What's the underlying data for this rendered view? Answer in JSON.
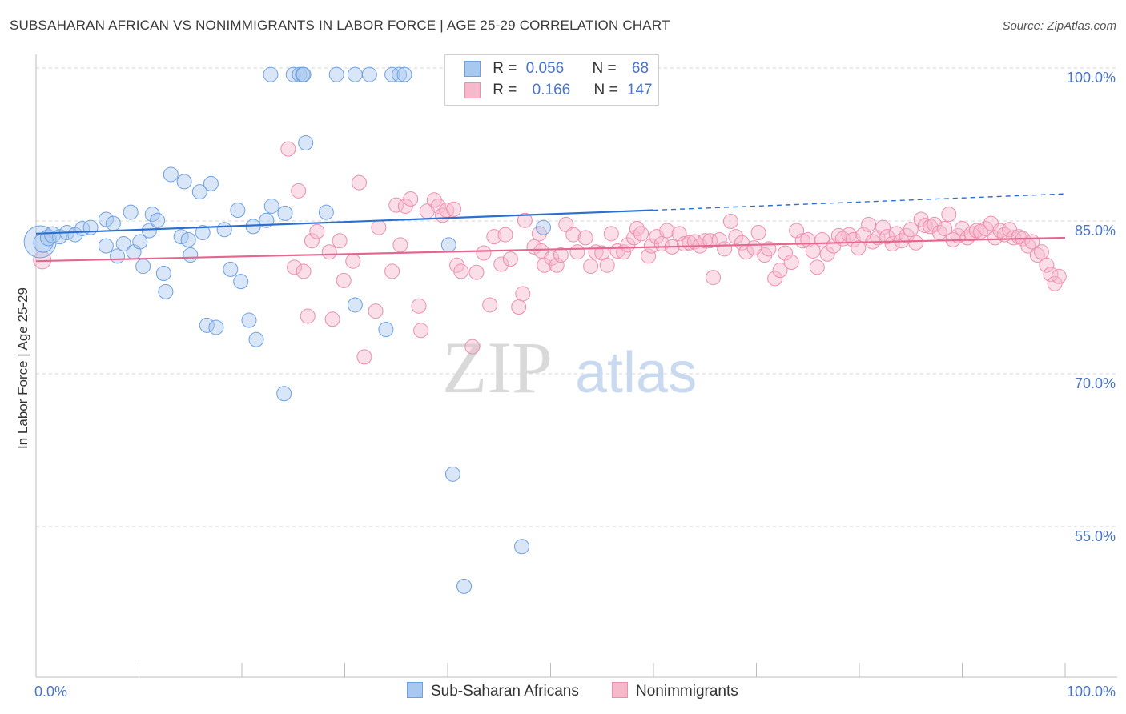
{
  "title": "SUBSAHARAN AFRICAN VS NONIMMIGRANTS IN LABOR FORCE | AGE 25-29 CORRELATION CHART",
  "source": "Source: ZipAtlas.com",
  "watermark": {
    "zip": "ZIP",
    "atlas": "atlas"
  },
  "legend": {
    "rows": [
      {
        "r_label": "R =",
        "r_value": "0.056",
        "n_label": "N =",
        "n_value": "68"
      },
      {
        "r_label": "R =",
        "r_value": "0.166",
        "n_label": "N =",
        "n_value": "147"
      }
    ]
  },
  "colors": {
    "blue_fill": "#a9c8f0",
    "blue_stroke": "#6fa0df",
    "blue_line": "#2b6fd0",
    "pink_fill": "#f6b8cb",
    "pink_stroke": "#ec8fac",
    "pink_line": "#e5678f",
    "tick_label": "#4a74c9"
  },
  "chart_data": {
    "type": "scatter",
    "title": "SUBSAHARAN AFRICAN VS NONIMMIGRANTS IN LABOR FORCE | AGE 25-29 CORRELATION CHART",
    "xlabel": "",
    "ylabel": "In Labor Force | Age 25-29",
    "xlim": [
      0,
      100
    ],
    "ylim": [
      40,
      101.5
    ],
    "x_tick_labels": [
      "0.0%",
      "100.0%"
    ],
    "y_ticks": [
      {
        "value": 100,
        "label": "100.0%"
      },
      {
        "value": 85,
        "label": "85.0%"
      },
      {
        "value": 70,
        "label": "70.0%"
      },
      {
        "value": 55,
        "label": "55.0%"
      }
    ],
    "grid": true,
    "legend_position": "bottom",
    "series": [
      {
        "name": "Sub-Saharan Africans",
        "R": 0.056,
        "N": 68,
        "trend": {
          "solid": [
            [
              0,
              84.7
            ],
            [
              60,
              87.0
            ]
          ],
          "dashed": [
            [
              60,
              87.0
            ],
            [
              100,
              88.6
            ]
          ]
        },
        "points": [
          [
            0.4,
            83.9,
            20
          ],
          [
            0.7,
            83.8,
            12
          ],
          [
            1.2,
            84.3,
            10
          ],
          [
            1.6,
            84.6,
            10
          ],
          [
            2.3,
            84.4,
            9
          ],
          [
            3,
            84.8,
            9
          ],
          [
            3.8,
            84.6,
            9
          ],
          [
            4.5,
            85.2,
            9
          ],
          [
            5.3,
            85.3,
            9
          ],
          [
            6.8,
            83.5,
            9
          ],
          [
            6.8,
            86.1,
            9
          ],
          [
            7.5,
            85.7,
            9
          ],
          [
            7.9,
            82.5,
            9
          ],
          [
            8.5,
            83.7,
            9
          ],
          [
            9.2,
            86.8,
            9
          ],
          [
            9.5,
            82.9,
            9
          ],
          [
            10.1,
            83.9,
            9
          ],
          [
            10.4,
            81.5,
            9
          ],
          [
            11,
            85,
            9
          ],
          [
            11.3,
            86.6,
            9
          ],
          [
            11.8,
            86,
            9
          ],
          [
            12.4,
            80.8,
            9
          ],
          [
            12.6,
            79,
            9
          ],
          [
            13.1,
            90.5,
            9
          ],
          [
            14.1,
            84.4,
            9
          ],
          [
            14.4,
            89.8,
            9
          ],
          [
            14.8,
            84.1,
            9
          ],
          [
            15,
            82.6,
            9
          ],
          [
            15.9,
            88.8,
            9
          ],
          [
            16.2,
            84.8,
            9
          ],
          [
            16.6,
            75.7,
            9
          ],
          [
            17,
            89.6,
            9
          ],
          [
            17.5,
            75.5,
            9
          ],
          [
            18.3,
            85.1,
            9
          ],
          [
            18.9,
            81.2,
            9
          ],
          [
            19.6,
            87,
            9
          ],
          [
            19.9,
            80,
            9
          ],
          [
            20.7,
            76.2,
            9
          ],
          [
            21.1,
            85.4,
            9
          ],
          [
            21.4,
            74.3,
            9
          ],
          [
            22.4,
            86,
            9
          ],
          [
            22.8,
            100.3,
            9
          ],
          [
            22.9,
            87.4,
            9
          ],
          [
            24.2,
            86.7,
            9
          ],
          [
            24.1,
            69,
            9
          ],
          [
            25,
            100.3,
            9
          ],
          [
            25.6,
            100.3,
            9
          ],
          [
            25.9,
            100.3,
            9
          ],
          [
            26,
            100.3,
            9
          ],
          [
            26.2,
            93.6,
            9
          ],
          [
            28.2,
            86.8,
            9
          ],
          [
            29.2,
            100.3,
            9
          ],
          [
            31,
            100.3,
            9
          ],
          [
            31,
            77.7,
            9
          ],
          [
            32.4,
            100.3,
            9
          ],
          [
            34,
            75.3,
            9
          ],
          [
            34.6,
            100.3,
            9
          ],
          [
            35.3,
            100.3,
            9
          ],
          [
            35.8,
            100.3,
            9
          ],
          [
            40.1,
            83.6,
            9
          ],
          [
            40.5,
            61.1,
            9
          ],
          [
            41.6,
            50.1,
            9
          ],
          [
            47.2,
            54,
            9
          ],
          [
            49.3,
            85.3,
            9
          ],
          [
            59.3,
            100.3,
            9
          ]
        ]
      },
      {
        "name": "Nonimmigrants",
        "R": 0.166,
        "N": 147,
        "trend": {
          "solid": [
            [
              0,
              82.0
            ],
            [
              100,
              84.3
            ]
          ]
        },
        "points": [
          [
            0.6,
            82.1,
            11
          ],
          [
            24.5,
            93,
            9
          ],
          [
            25.1,
            81.4,
            9
          ],
          [
            25.5,
            88.9,
            9
          ],
          [
            26,
            81,
            9
          ],
          [
            26.4,
            76.6,
            9
          ],
          [
            26.8,
            84,
            9
          ],
          [
            27.3,
            84.9,
            9
          ],
          [
            28.5,
            82.9,
            9
          ],
          [
            28.8,
            76.3,
            9
          ],
          [
            29.5,
            84,
            9
          ],
          [
            29.9,
            80.1,
            9
          ],
          [
            30.8,
            82,
            9
          ],
          [
            31.4,
            89.7,
            9
          ],
          [
            31.9,
            72.6,
            9
          ],
          [
            33,
            77.1,
            9
          ],
          [
            33.3,
            85.3,
            9
          ],
          [
            34.6,
            81,
            9
          ],
          [
            35,
            87.5,
            9
          ],
          [
            35.4,
            83.6,
            9
          ],
          [
            35.9,
            87.4,
            9
          ],
          [
            36.4,
            88.1,
            9
          ],
          [
            37.2,
            77.6,
            9
          ],
          [
            37.4,
            75.2,
            9
          ],
          [
            38,
            86.9,
            9
          ],
          [
            38.7,
            88,
            9
          ],
          [
            39.1,
            87.4,
            9
          ],
          [
            39.5,
            86.5,
            9
          ],
          [
            39.9,
            87,
            9
          ],
          [
            40.6,
            87.1,
            9
          ],
          [
            40.9,
            81.6,
            9
          ],
          [
            41.3,
            81,
            9
          ],
          [
            42.4,
            73.6,
            9
          ],
          [
            42.8,
            80.9,
            9
          ],
          [
            43.5,
            82.8,
            9
          ],
          [
            44.1,
            77.7,
            9
          ],
          [
            44.5,
            84.4,
            9
          ],
          [
            45.2,
            81.7,
            9
          ],
          [
            45.6,
            84.6,
            9
          ],
          [
            46.1,
            82.2,
            9
          ],
          [
            46.9,
            77.5,
            9
          ],
          [
            47.3,
            78.8,
            9
          ],
          [
            47.5,
            86,
            9
          ],
          [
            48.4,
            83.4,
            9
          ],
          [
            48.9,
            84.7,
            9
          ],
          [
            49.1,
            83,
            9
          ],
          [
            49.4,
            81.6,
            9
          ],
          [
            50.1,
            82.3,
            9
          ],
          [
            50.6,
            81.6,
            9
          ],
          [
            51,
            82.6,
            9
          ],
          [
            51.5,
            85.6,
            9
          ],
          [
            52.2,
            84.6,
            9
          ],
          [
            52.6,
            82.9,
            9
          ],
          [
            53.4,
            84.3,
            9
          ],
          [
            53.9,
            81.5,
            9
          ],
          [
            54.4,
            82.9,
            9
          ],
          [
            55,
            82.8,
            9
          ],
          [
            55.5,
            81.6,
            9
          ],
          [
            55.9,
            84.7,
            9
          ],
          [
            56.5,
            83,
            9
          ],
          [
            57.1,
            82.9,
            9
          ],
          [
            57.5,
            83.6,
            9
          ],
          [
            58.1,
            84.3,
            9
          ],
          [
            58.4,
            85.2,
            9
          ],
          [
            58.8,
            84.7,
            9
          ],
          [
            59.5,
            82.5,
            9
          ],
          [
            59.8,
            83.5,
            9
          ],
          [
            60.3,
            84.4,
            9
          ],
          [
            60.8,
            83.7,
            9
          ],
          [
            61.3,
            85,
            9
          ],
          [
            61.8,
            83.4,
            9
          ],
          [
            62.5,
            84.7,
            9
          ],
          [
            63,
            83.7,
            9
          ],
          [
            63.5,
            83.8,
            9
          ],
          [
            64,
            83.9,
            9
          ],
          [
            64.5,
            83.5,
            9
          ],
          [
            65,
            84,
            9
          ],
          [
            65.5,
            84,
            9
          ],
          [
            65.8,
            80.4,
            9
          ],
          [
            66.4,
            84.1,
            9
          ],
          [
            66.9,
            83.2,
            9
          ],
          [
            67.5,
            85.9,
            9
          ],
          [
            68,
            84.4,
            9
          ],
          [
            68.6,
            83.8,
            9
          ],
          [
            69,
            82.9,
            9
          ],
          [
            69.8,
            83.3,
            9
          ],
          [
            70.2,
            84.8,
            9
          ],
          [
            70.8,
            82.6,
            9
          ],
          [
            71.2,
            83.2,
            9
          ],
          [
            71.8,
            80.3,
            9
          ],
          [
            72.3,
            81.1,
            9
          ],
          [
            72.8,
            82.8,
            9
          ],
          [
            73.4,
            81.9,
            9
          ],
          [
            73.9,
            85,
            9
          ],
          [
            74.5,
            84,
            9
          ],
          [
            75,
            84.1,
            9
          ],
          [
            75.5,
            83,
            9
          ],
          [
            75.9,
            81.4,
            9
          ],
          [
            76.4,
            84.1,
            9
          ],
          [
            76.9,
            82.7,
            9
          ],
          [
            77.5,
            83.5,
            9
          ],
          [
            78,
            84.5,
            9
          ],
          [
            78.4,
            84.2,
            9
          ],
          [
            79,
            84.6,
            9
          ],
          [
            79.4,
            84.1,
            9
          ],
          [
            79.9,
            83.3,
            9
          ],
          [
            80.4,
            84.6,
            9
          ],
          [
            80.9,
            85.6,
            9
          ],
          [
            81.3,
            83.9,
            9
          ],
          [
            81.8,
            84.3,
            9
          ],
          [
            82.3,
            85.3,
            9
          ],
          [
            82.7,
            84.4,
            9
          ],
          [
            83.2,
            83.7,
            9
          ],
          [
            83.6,
            84.7,
            9
          ],
          [
            84.1,
            84,
            9
          ],
          [
            84.6,
            84.5,
            9
          ],
          [
            85,
            85.1,
            9
          ],
          [
            85.5,
            83.8,
            9
          ],
          [
            86,
            86.1,
            9
          ],
          [
            86.4,
            85.5,
            9
          ],
          [
            86.9,
            85.4,
            9
          ],
          [
            87.3,
            85.6,
            9
          ],
          [
            87.8,
            84.8,
            9
          ],
          [
            88.3,
            85.2,
            9
          ],
          [
            88.7,
            86.6,
            9
          ],
          [
            89.1,
            84.1,
            9
          ],
          [
            89.6,
            84.5,
            9
          ],
          [
            90,
            85.2,
            9
          ],
          [
            90.5,
            84.3,
            9
          ],
          [
            90.9,
            84.7,
            9
          ],
          [
            91.4,
            85,
            9
          ],
          [
            91.8,
            84.9,
            9
          ],
          [
            92.3,
            85.2,
            9
          ],
          [
            92.8,
            85.7,
            9
          ],
          [
            93.2,
            84.3,
            9
          ],
          [
            93.7,
            85,
            9
          ],
          [
            94.1,
            84.6,
            9
          ],
          [
            94.6,
            85.1,
            9
          ],
          [
            95,
            84.3,
            9
          ],
          [
            95.5,
            84.4,
            9
          ],
          [
            95.9,
            84.2,
            9
          ],
          [
            96.4,
            83.5,
            9
          ],
          [
            96.8,
            83.9,
            9
          ],
          [
            97.3,
            82.6,
            9
          ],
          [
            97.7,
            82.9,
            9
          ],
          [
            98.2,
            81.6,
            9
          ],
          [
            98.6,
            80.7,
            9
          ],
          [
            99,
            79.8,
            9
          ],
          [
            99.4,
            80.5,
            9
          ]
        ]
      }
    ]
  }
}
